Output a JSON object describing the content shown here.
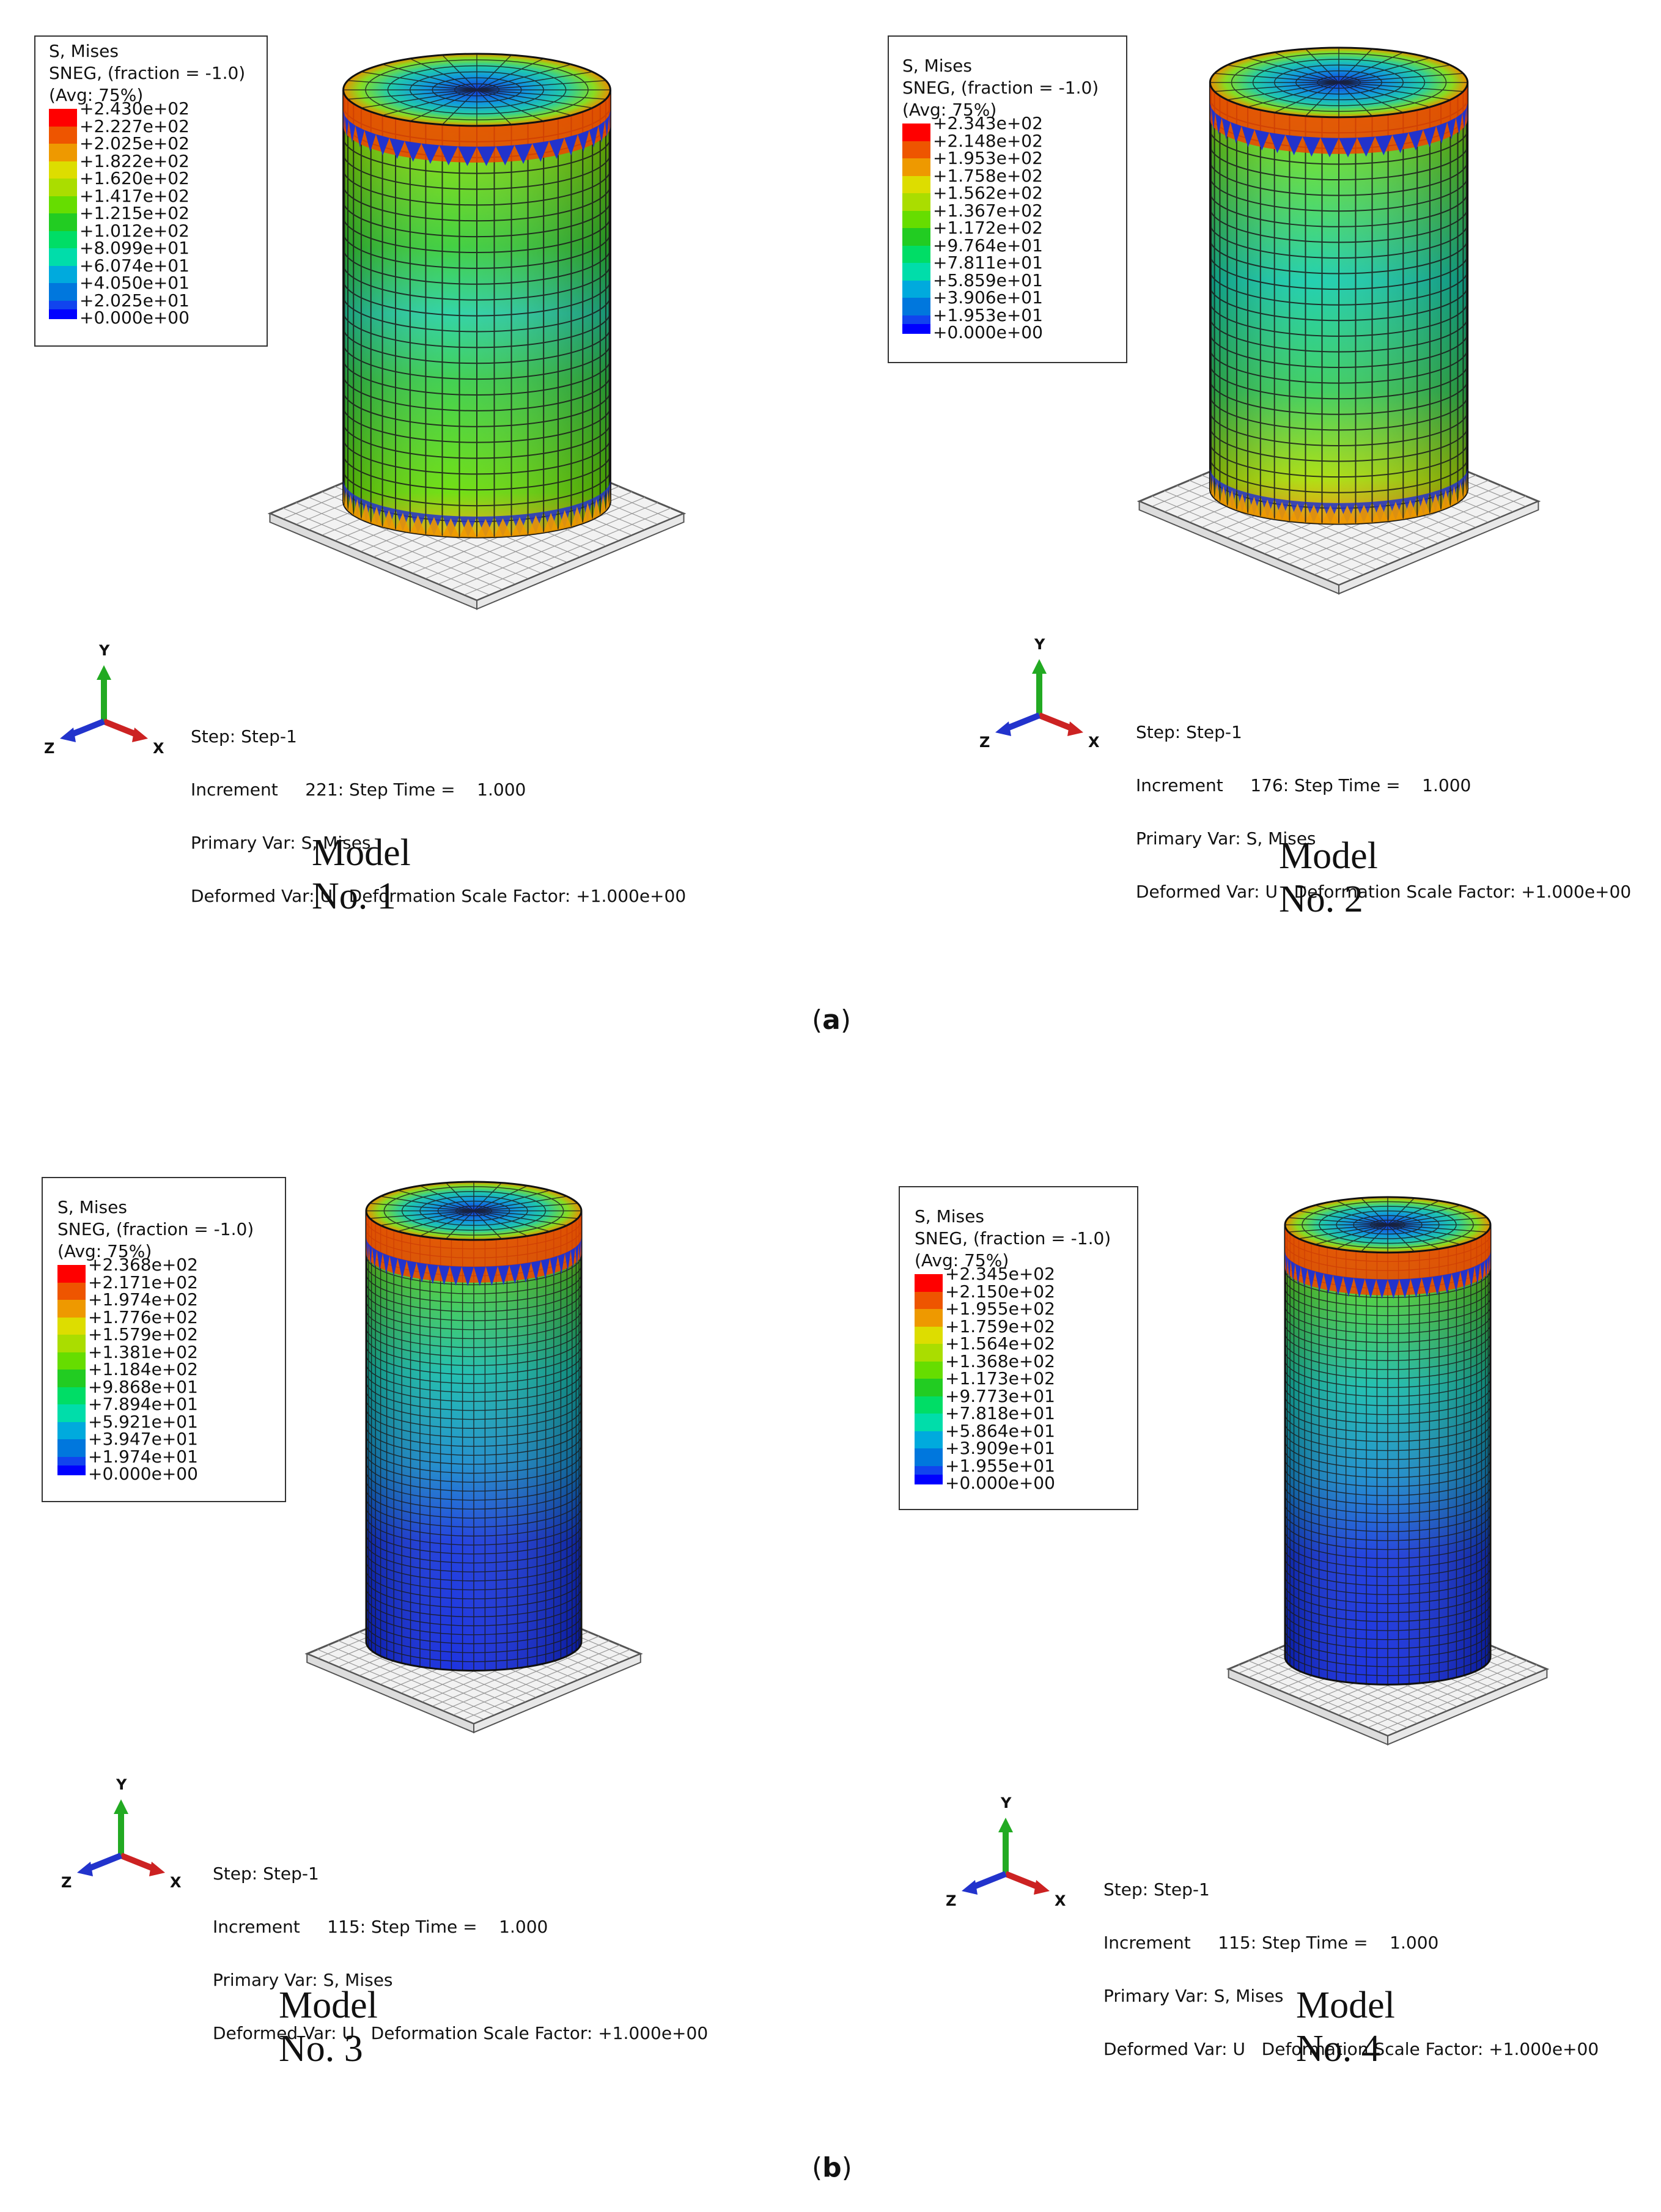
{
  "panels": [
    {
      "legend": {
        "title": "S, Mises",
        "sneg": "SNEG, (fraction = -1.0)",
        "avg": "(Avg: 75%)",
        "values": [
          "+2.430e+02",
          "+2.227e+02",
          "+2.025e+02",
          "+1.822e+02",
          "+1.620e+02",
          "+1.417e+02",
          "+1.215e+02",
          "+1.012e+02",
          "+8.099e+01",
          "+6.074e+01",
          "+4.050e+01",
          "+2.025e+01",
          "+0.000e+00"
        ]
      },
      "step": {
        "line1": "Step: Step-1",
        "line2": "Increment     221: Step Time =    1.000",
        "line3": "Primary Var: S, Mises",
        "line4": "Deformed Var: U   Deformation Scale Factor: +1.000e+00"
      },
      "triad": {
        "y": "Y",
        "x": "X",
        "z": "Z"
      },
      "model_title": "Model No. 1"
    },
    {
      "legend": {
        "title": "S, Mises",
        "sneg": "SNEG, (fraction = -1.0)",
        "avg": "(Avg: 75%)",
        "values": [
          "+2.343e+02",
          "+2.148e+02",
          "+1.953e+02",
          "+1.758e+02",
          "+1.562e+02",
          "+1.367e+02",
          "+1.172e+02",
          "+9.764e+01",
          "+7.811e+01",
          "+5.859e+01",
          "+3.906e+01",
          "+1.953e+01",
          "+0.000e+00"
        ]
      },
      "step": {
        "line1": "Step: Step-1",
        "line2": "Increment     176: Step Time =    1.000",
        "line3": "Primary Var: S, Mises",
        "line4": "Deformed Var: U   Deformation Scale Factor: +1.000e+00"
      },
      "triad": {
        "y": "Y",
        "x": "X",
        "z": "Z"
      },
      "model_title": "Model No. 2"
    },
    {
      "legend": {
        "title": "S, Mises",
        "sneg": "SNEG, (fraction = -1.0)",
        "avg": "(Avg: 75%)",
        "values": [
          "+2.368e+02",
          "+2.171e+02",
          "+1.974e+02",
          "+1.776e+02",
          "+1.579e+02",
          "+1.381e+02",
          "+1.184e+02",
          "+9.868e+01",
          "+7.894e+01",
          "+5.921e+01",
          "+3.947e+01",
          "+1.974e+01",
          "+0.000e+00"
        ]
      },
      "step": {
        "line1": "Step: Step-1",
        "line2": "Increment     115: Step Time =    1.000",
        "line3": "Primary Var: S, Mises",
        "line4": "Deformed Var: U   Deformation Scale Factor: +1.000e+00"
      },
      "triad": {
        "y": "Y",
        "x": "X",
        "z": "Z"
      },
      "model_title": "Model No. 3"
    },
    {
      "legend": {
        "title": "S, Mises",
        "sneg": "SNEG, (fraction = -1.0)",
        "avg": "(Avg: 75%)",
        "values": [
          "+2.345e+02",
          "+2.150e+02",
          "+1.955e+02",
          "+1.759e+02",
          "+1.564e+02",
          "+1.368e+02",
          "+1.173e+02",
          "+9.773e+01",
          "+7.818e+01",
          "+5.864e+01",
          "+3.909e+01",
          "+1.955e+01",
          "+0.000e+00"
        ]
      },
      "step": {
        "line1": "Step: Step-1",
        "line2": "Increment     115: Step Time =    1.000",
        "line3": "Primary Var: S, Mises",
        "line4": "Deformed Var: U   Deformation Scale Factor: +1.000e+00"
      },
      "triad": {
        "y": "Y",
        "x": "X",
        "z": "Z"
      },
      "model_title": "Model No. 4"
    }
  ],
  "captions": {
    "a": {
      "open": "(",
      "letter": "a",
      "close": ")"
    },
    "b": {
      "open": "(",
      "letter": "b",
      "close": ")"
    }
  },
  "colors": {
    "legend_scale": [
      "#ff0000",
      "#ee5500",
      "#ee9900",
      "#dddd00",
      "#aadd00",
      "#66dd00",
      "#22cc22",
      "#00dd66",
      "#00ddaa",
      "#00aadd",
      "#0077dd",
      "#1144ee",
      "#0000ff"
    ],
    "mesh_line": "#1a1a1a",
    "plate_fill": "#f2f2f2",
    "plate_line": "#555555",
    "axis_y": "#22aa22",
    "axis_x": "#cc2222",
    "axis_z": "#2233cc"
  }
}
